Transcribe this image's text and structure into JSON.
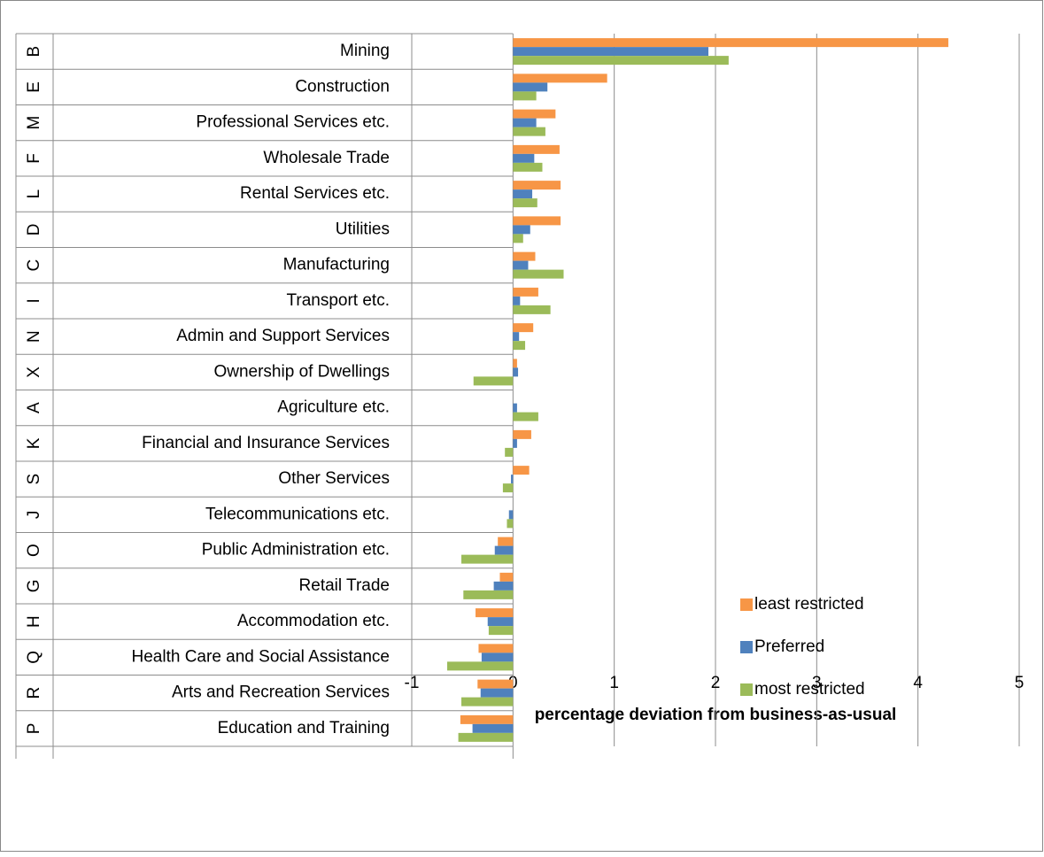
{
  "chart_data": {
    "type": "bar",
    "orientation": "horizontal",
    "xlabel": "percentage deviation from business-as-usual",
    "codes": [
      "B",
      "E",
      "M",
      "F",
      "L",
      "D",
      "C",
      "I",
      "N",
      "X",
      "A",
      "K",
      "S",
      "J",
      "O",
      "G",
      "H",
      "Q",
      "R",
      "P"
    ],
    "categories": [
      "Mining",
      "Construction",
      "Professional Services etc.",
      "Wholesale Trade",
      "Rental Services etc.",
      "Utilities",
      "Manufacturing",
      "Transport etc.",
      "Admin and Support Services",
      "Ownership of Dwellings",
      "Agriculture etc.",
      "Financial and Insurance Services",
      "Other Services",
      "Telecommunications etc.",
      "Public Administration etc.",
      "Retail Trade",
      "Accommodation etc.",
      "Health Care and Social Assistance",
      "Arts and Recreation Services",
      "Education and Training"
    ],
    "series": [
      {
        "name": "least restricted",
        "color": "#f79646",
        "values": [
          4.3,
          0.93,
          0.42,
          0.46,
          0.47,
          0.47,
          0.22,
          0.25,
          0.2,
          0.04,
          0,
          0.18,
          0.16,
          0,
          -0.15,
          -0.13,
          -0.37,
          -0.34,
          -0.35,
          -0.52
        ]
      },
      {
        "name": "Preferred",
        "color": "#4f81bd",
        "values": [
          1.93,
          0.34,
          0.23,
          0.21,
          0.19,
          0.17,
          0.15,
          0.07,
          0.06,
          0.05,
          0.04,
          0.04,
          -0.02,
          -0.04,
          -0.18,
          -0.19,
          -0.25,
          -0.31,
          -0.32,
          -0.4
        ]
      },
      {
        "name": "most restricted",
        "color": "#9bbb59",
        "values": [
          2.13,
          0.23,
          0.32,
          0.29,
          0.24,
          0.1,
          0.5,
          0.37,
          0.12,
          -0.39,
          0.25,
          -0.08,
          -0.1,
          -0.06,
          -0.51,
          -0.49,
          -0.24,
          -0.65,
          -0.51,
          -0.54
        ]
      }
    ],
    "xlim": [
      -1,
      5
    ],
    "xticks": [
      -1,
      0,
      1,
      2,
      3,
      4,
      5
    ],
    "grid": true,
    "legend": "right"
  }
}
